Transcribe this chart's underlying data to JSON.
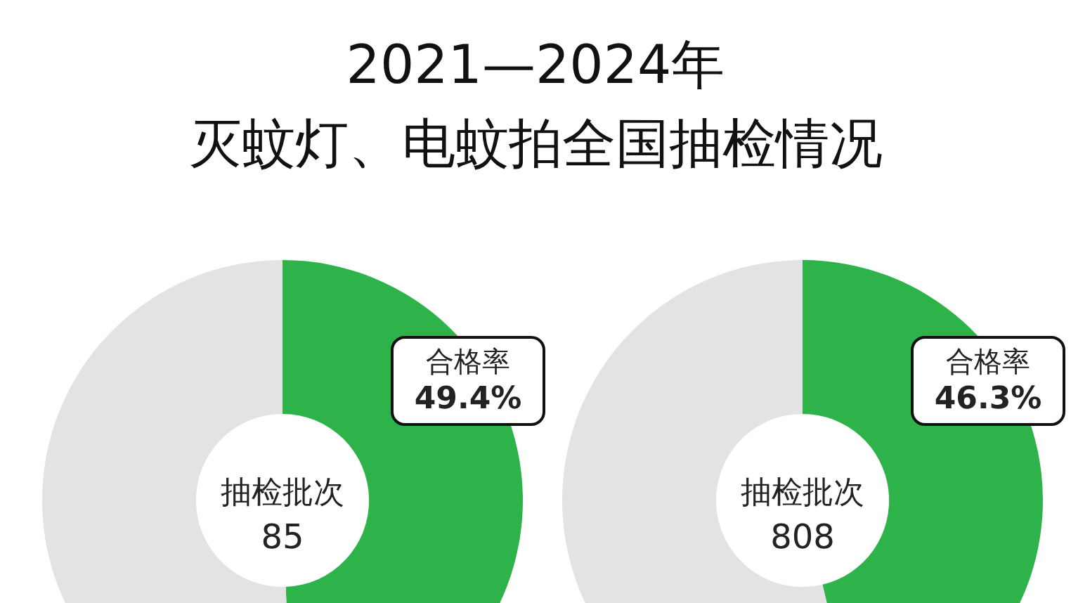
{
  "chart_data": [
    {
      "type": "donut",
      "title": "2021—2024年",
      "subtitle": "灭蚊灯、电蚊拍全国抽检情况",
      "categories": [
        "合格率",
        null
      ],
      "values": [
        49.4,
        50.6
      ],
      "colors": [
        "#2db34a",
        "#e3e3e3"
      ],
      "value_labels": [
        "49.4%",
        null
      ],
      "annotations": [
        "抽检批次",
        "85"
      ]
    },
    {
      "type": "donut",
      "categories": [
        "合格率",
        null
      ],
      "values": [
        46.3,
        53.7
      ],
      "colors": [
        "#2db34a",
        "#e3e3e3"
      ],
      "value_labels": [
        "46.3%",
        null
      ],
      "annotations": [
        "抽检批次",
        "808"
      ]
    }
  ]
}
